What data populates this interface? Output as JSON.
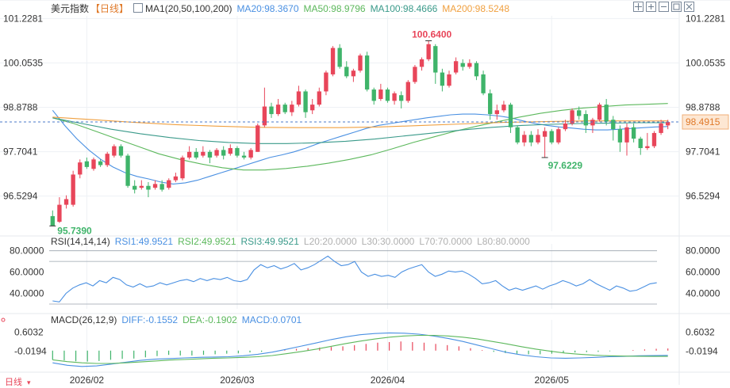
{
  "header": {
    "title": "美元指数",
    "period": "【日线】",
    "ma_label": "MA1(20,50,100,200)",
    "ma20": "MA20:98.3670",
    "ma50": "MA50:98.9796",
    "ma100": "MA100:98.4666",
    "ma200": "MA200:98.5248"
  },
  "rsi_header": {
    "label": "RSI(14,14,14)",
    "rsi1": "RSI1:49.9521",
    "rsi2": "RSI2:49.9521",
    "rsi3": "RSI3:49.9521",
    "l20": "L20:20.0000",
    "l30": "L30:30.0000",
    "l70": "L70:70.0000",
    "l80": "L80:80.0000"
  },
  "macd_header": {
    "label": "MACD(26,12,9)",
    "diff": "DIFF:-0.1552",
    "dea": "DEA:-0.1902",
    "macd": "MACD:0.0701"
  },
  "bottom_label": "日线",
  "toolbar_icons": [
    "crosshair-icon",
    "zoom-in-icon",
    "zoom-out-icon",
    "grid-icon",
    "expand-icon"
  ],
  "colors": {
    "up": "#e8465a",
    "down": "#3fb46a",
    "ma20": "#4a90e2",
    "ma50": "#5cb85c",
    "ma100": "#3a9a8a",
    "ma200": "#f0a040",
    "last_price_bg": "#fde7d3",
    "last_price_text": "#e07a2a",
    "high_label": "#e8465a",
    "low_label": "#3fb46a"
  },
  "chart_data": [
    {
      "type": "candlestick",
      "title": "美元指数",
      "x_tick_labels": [
        "2026/02",
        "2026/03",
        "2026/04",
        "2026/05"
      ],
      "y_tick_labels": [
        "101.2281",
        "100.0535",
        "98.8788",
        "97.7041",
        "96.5294"
      ],
      "ylim": [
        95.6,
        101.3
      ],
      "last_price": "98.4915",
      "high_marker": "100.6400",
      "low_marker_left": "95.7390",
      "low_marker_right": "97.6229",
      "grid": true,
      "candles": [
        [
          96.0,
          95.74,
          95.74,
          96.15,
          "02/02"
        ],
        [
          95.85,
          96.3,
          95.82,
          96.5,
          "02/03"
        ],
        [
          96.3,
          96.45,
          96.2,
          96.55,
          "02/04"
        ],
        [
          96.3,
          97.1,
          96.25,
          97.2,
          "02/05"
        ],
        [
          97.1,
          97.42,
          97.0,
          97.5,
          "02/06"
        ],
        [
          97.45,
          97.3,
          97.25,
          97.55,
          "02/09"
        ],
        [
          97.25,
          97.5,
          97.2,
          97.55,
          "02/10"
        ],
        [
          97.45,
          97.35,
          97.3,
          97.5,
          "02/11"
        ],
        [
          97.35,
          97.65,
          97.3,
          97.7,
          "02/12"
        ],
        [
          97.6,
          97.85,
          97.55,
          97.9,
          "02/13"
        ],
        [
          97.85,
          97.6,
          97.55,
          97.9,
          "02/16"
        ],
        [
          97.6,
          96.8,
          96.75,
          97.65,
          "02/17"
        ],
        [
          96.8,
          96.7,
          96.6,
          96.95,
          "02/18"
        ],
        [
          96.75,
          96.8,
          96.7,
          96.95,
          "02/19"
        ],
        [
          96.8,
          96.7,
          96.5,
          96.9,
          "02/20"
        ],
        [
          96.75,
          96.85,
          96.7,
          96.95,
          "02/23"
        ],
        [
          96.85,
          96.7,
          96.65,
          96.95,
          "02/24"
        ],
        [
          96.75,
          96.95,
          96.7,
          97.0,
          "02/25"
        ],
        [
          96.95,
          97.05,
          96.9,
          97.15,
          "02/26"
        ],
        [
          97.0,
          97.55,
          96.95,
          97.6,
          "02/27"
        ],
        [
          97.55,
          97.7,
          97.5,
          97.85,
          "03/02"
        ],
        [
          97.7,
          97.55,
          97.5,
          97.8,
          "03/03"
        ],
        [
          97.6,
          97.7,
          97.55,
          97.85,
          "03/04"
        ],
        [
          97.7,
          97.55,
          97.4,
          97.75,
          "03/05"
        ],
        [
          97.6,
          97.75,
          97.55,
          97.8,
          "03/06"
        ],
        [
          97.75,
          97.6,
          97.5,
          97.85,
          "03/09"
        ],
        [
          97.65,
          97.8,
          97.6,
          97.9,
          "03/10"
        ],
        [
          97.8,
          97.6,
          97.55,
          97.85,
          "03/11"
        ],
        [
          97.6,
          97.55,
          97.5,
          97.7,
          "03/12"
        ],
        [
          97.55,
          97.75,
          97.5,
          97.8,
          "03/13"
        ],
        [
          97.7,
          98.4,
          97.7,
          98.45,
          "03/16"
        ],
        [
          98.4,
          98.9,
          98.35,
          99.4,
          "03/17"
        ],
        [
          98.9,
          98.7,
          98.6,
          99.0,
          "03/18"
        ],
        [
          98.7,
          98.95,
          98.65,
          99.1,
          "03/19"
        ],
        [
          98.95,
          98.75,
          98.7,
          99.0,
          "03/20"
        ],
        [
          98.75,
          98.95,
          98.65,
          99.05,
          "03/23"
        ],
        [
          98.95,
          99.3,
          98.9,
          99.45,
          "03/24"
        ],
        [
          99.3,
          98.75,
          98.6,
          99.35,
          "03/25"
        ],
        [
          98.8,
          98.95,
          98.7,
          99.1,
          "03/26"
        ],
        [
          98.95,
          99.3,
          98.9,
          99.4,
          "03/27"
        ],
        [
          99.3,
          99.8,
          99.2,
          99.85,
          "03/30"
        ],
        [
          99.75,
          100.45,
          99.7,
          100.5,
          "03/31"
        ],
        [
          100.45,
          99.95,
          99.9,
          100.55,
          "04/01"
        ],
        [
          99.95,
          99.7,
          99.65,
          100.1,
          "04/02"
        ],
        [
          99.7,
          99.85,
          99.55,
          99.9,
          "04/03"
        ],
        [
          99.85,
          100.25,
          99.8,
          100.3,
          "04/06"
        ],
        [
          100.25,
          99.35,
          99.3,
          100.35,
          "04/07"
        ],
        [
          99.35,
          99.05,
          98.95,
          99.4,
          "04/08"
        ],
        [
          99.1,
          99.35,
          99.05,
          99.5,
          "04/09"
        ],
        [
          99.35,
          99.05,
          99.0,
          99.4,
          "04/10"
        ],
        [
          99.05,
          99.25,
          98.95,
          99.3,
          "04/13"
        ],
        [
          99.2,
          99.05,
          98.85,
          99.3,
          "04/14"
        ],
        [
          99.05,
          99.55,
          99.0,
          99.6,
          "04/15"
        ],
        [
          99.55,
          99.95,
          99.5,
          100.0,
          "04/16"
        ],
        [
          99.95,
          100.15,
          99.85,
          100.2,
          "04/17"
        ],
        [
          100.15,
          100.55,
          100.1,
          100.64,
          "04/20"
        ],
        [
          100.5,
          99.8,
          99.5,
          100.55,
          "04/21"
        ],
        [
          99.8,
          99.45,
          99.3,
          99.9,
          "04/22"
        ],
        [
          99.45,
          99.75,
          99.4,
          99.85,
          "04/23"
        ],
        [
          99.8,
          100.1,
          99.75,
          100.2,
          "04/24"
        ],
        [
          100.05,
          99.95,
          99.85,
          100.15,
          "04/27"
        ],
        [
          99.95,
          100.05,
          99.9,
          100.15,
          "04/28"
        ],
        [
          100.05,
          99.7,
          99.6,
          100.1,
          "04/29"
        ],
        [
          99.75,
          99.25,
          99.2,
          99.85,
          "04/30"
        ],
        [
          99.25,
          98.7,
          98.55,
          99.35,
          "05/01"
        ],
        [
          98.7,
          98.8,
          98.55,
          98.95,
          "05/04"
        ],
        [
          98.8,
          98.95,
          98.75,
          99.05,
          "05/05"
        ],
        [
          98.95,
          98.35,
          98.2,
          99.0,
          "05/06"
        ],
        [
          98.35,
          97.95,
          97.9,
          98.4,
          "05/07"
        ],
        [
          97.95,
          98.15,
          97.85,
          98.25,
          "05/08"
        ],
        [
          98.15,
          97.95,
          97.85,
          98.25,
          "05/11"
        ],
        [
          97.95,
          98.15,
          97.9,
          98.3,
          "05/12"
        ],
        [
          98.1,
          98.25,
          97.55,
          98.35,
          "05/13"
        ],
        [
          98.25,
          97.95,
          97.9,
          98.3,
          "05/14"
        ],
        [
          97.95,
          98.3,
          97.9,
          98.35,
          "05/15"
        ],
        [
          98.3,
          98.45,
          98.25,
          98.55,
          "05/18"
        ],
        [
          98.45,
          98.8,
          98.4,
          98.85,
          "05/19"
        ],
        [
          98.8,
          98.65,
          98.55,
          98.9,
          "05/20"
        ],
        [
          98.7,
          98.4,
          98.2,
          98.8,
          "05/21"
        ],
        [
          98.4,
          98.55,
          98.2,
          98.6,
          "05/22"
        ],
        [
          98.55,
          98.95,
          98.5,
          99.0,
          "05/25"
        ],
        [
          98.95,
          98.5,
          98.4,
          99.1,
          "05/26"
        ],
        [
          98.55,
          98.3,
          98.0,
          98.65,
          "05/27"
        ],
        [
          98.3,
          97.95,
          97.7,
          98.4,
          "05/28"
        ],
        [
          97.95,
          98.35,
          97.6,
          98.45,
          "05/29"
        ],
        [
          98.35,
          98.05,
          97.95,
          98.45,
          "06/01"
        ],
        [
          98.05,
          97.8,
          97.62,
          98.1,
          "06/02"
        ],
        [
          97.8,
          97.85,
          97.75,
          98.2,
          "06/03"
        ],
        [
          97.85,
          98.2,
          97.8,
          98.25,
          "06/04"
        ],
        [
          98.2,
          98.45,
          98.15,
          98.55,
          "06/05"
        ],
        [
          98.4,
          98.49,
          98.3,
          98.55,
          "06/08"
        ]
      ],
      "series": [
        {
          "name": "MA20",
          "values": [
            98.8,
            98.4,
            98.05,
            97.75,
            97.5,
            97.3,
            97.15,
            97.05,
            96.98,
            96.9,
            96.85,
            96.88,
            96.95,
            97.05,
            97.15,
            97.25,
            97.35,
            97.45,
            97.55,
            97.62,
            97.7,
            97.8,
            97.92,
            98.02,
            98.12,
            98.22,
            98.32,
            98.4,
            98.45,
            98.5,
            98.55,
            98.6,
            98.64,
            98.68,
            98.7,
            98.7,
            98.68,
            98.65,
            98.6,
            98.52,
            98.45,
            98.4,
            98.36,
            98.33,
            98.3,
            98.28,
            98.28,
            98.3,
            98.32,
            98.34,
            98.36,
            98.37
          ]
        },
        {
          "name": "MA50",
          "values": [
            98.6,
            98.45,
            98.25,
            98.05,
            97.85,
            97.65,
            97.5,
            97.38,
            97.28,
            97.22,
            97.22,
            97.26,
            97.32,
            97.4,
            97.5,
            97.62,
            97.78,
            97.95,
            98.1,
            98.25,
            98.38,
            98.5,
            98.62,
            98.72,
            98.8,
            98.86,
            98.9,
            98.94,
            98.96,
            98.98
          ]
        },
        {
          "name": "MA100",
          "values": [
            98.6,
            98.45,
            98.3,
            98.18,
            98.08,
            98.0,
            97.95,
            97.92,
            97.92,
            97.94,
            97.98,
            98.04,
            98.12,
            98.2,
            98.28,
            98.35,
            98.4,
            98.43,
            98.45,
            98.46,
            98.47,
            98.47
          ]
        },
        {
          "name": "MA200",
          "values": [
            98.62,
            98.55,
            98.48,
            98.42,
            98.38,
            98.35,
            98.34,
            98.34,
            98.36,
            98.4,
            98.44,
            98.48,
            98.5,
            98.52,
            98.52,
            98.52
          ]
        }
      ]
    },
    {
      "type": "line",
      "title": "RSI(14,14,14)",
      "y_tick_labels": [
        "80.0000",
        "60.0000",
        "40.0000"
      ],
      "ylim": [
        30,
        82
      ],
      "reference_lines": [
        20,
        30,
        70,
        80
      ],
      "series": [
        {
          "name": "RSI1",
          "values": [
            33,
            32,
            40,
            45,
            48,
            50,
            47,
            52,
            50,
            55,
            53,
            48,
            46,
            49,
            46,
            47,
            50,
            48,
            50,
            52,
            53,
            51,
            54,
            52,
            54,
            53,
            55,
            52,
            51,
            53,
            62,
            67,
            64,
            66,
            63,
            65,
            68,
            62,
            64,
            67,
            71,
            75,
            70,
            66,
            67,
            70,
            60,
            56,
            58,
            56,
            57,
            55,
            60,
            63,
            65,
            67,
            60,
            56,
            58,
            61,
            60,
            61,
            58,
            54,
            49,
            50,
            52,
            47,
            43,
            45,
            43,
            45,
            47,
            44,
            47,
            49,
            52,
            50,
            47,
            49,
            53,
            49,
            46,
            43,
            47,
            45,
            42,
            43,
            46,
            49,
            50
          ]
        }
      ]
    },
    {
      "type": "bar+line",
      "title": "MACD(26,12,9)",
      "y_tick_labels": [
        "0.6032",
        "-0.0194"
      ],
      "ylim": [
        -0.55,
        0.85
      ],
      "macd_hist": [
        -0.3,
        -0.32,
        -0.35,
        -0.36,
        -0.34,
        -0.3,
        -0.27,
        -0.26,
        -0.22,
        -0.18,
        -0.14,
        -0.16,
        -0.16,
        -0.14,
        -0.12,
        -0.1,
        -0.09,
        -0.06,
        -0.04,
        0.0,
        0.04,
        0.06,
        0.08,
        0.1,
        0.12,
        0.14,
        0.18,
        0.22,
        0.26,
        0.28,
        0.3,
        0.28,
        0.26,
        0.22,
        0.18,
        0.14,
        0.08,
        0.02,
        -0.04,
        -0.08,
        -0.1,
        -0.12,
        -0.12,
        -0.1,
        -0.08,
        -0.06,
        -0.05,
        -0.04,
        -0.02,
        0.0,
        0.02,
        0.04,
        0.06,
        0.07
      ],
      "series": [
        {
          "name": "DIFF",
          "values": [
            -0.4,
            -0.48,
            -0.52,
            -0.5,
            -0.44,
            -0.38,
            -0.32,
            -0.28,
            -0.26,
            -0.24,
            -0.22,
            -0.21,
            -0.2,
            -0.17,
            -0.12,
            -0.05,
            0.05,
            0.15,
            0.25,
            0.36,
            0.45,
            0.52,
            0.56,
            0.58,
            0.57,
            0.54,
            0.48,
            0.4,
            0.3,
            0.18,
            0.06,
            -0.06,
            -0.14,
            -0.2,
            -0.24,
            -0.25,
            -0.24,
            -0.22,
            -0.2,
            -0.19,
            -0.17,
            -0.16,
            -0.155
          ]
        },
        {
          "name": "DEA",
          "values": [
            -0.3,
            -0.36,
            -0.4,
            -0.42,
            -0.42,
            -0.4,
            -0.37,
            -0.34,
            -0.31,
            -0.29,
            -0.27,
            -0.25,
            -0.24,
            -0.22,
            -0.2,
            -0.16,
            -0.1,
            -0.03,
            0.05,
            0.14,
            0.23,
            0.31,
            0.38,
            0.44,
            0.48,
            0.5,
            0.5,
            0.48,
            0.44,
            0.38,
            0.3,
            0.22,
            0.13,
            0.05,
            -0.02,
            -0.08,
            -0.12,
            -0.15,
            -0.17,
            -0.18,
            -0.185,
            -0.19,
            -0.19
          ]
        }
      ]
    }
  ]
}
